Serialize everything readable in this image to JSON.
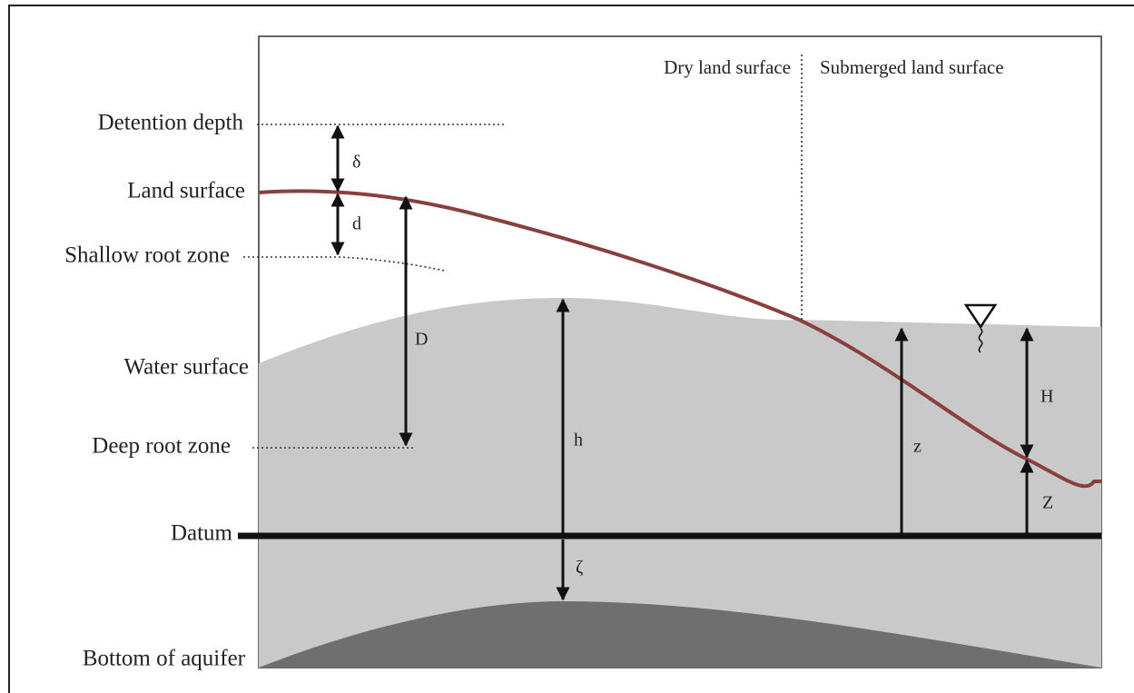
{
  "left_labels": [
    "Detention depth",
    "Land surface",
    "Shallow root zone",
    "Water surface",
    "Deep root zone",
    "Datum",
    "Bottom of aquifer"
  ],
  "top_labels": [
    "Dry land surface",
    "Submerged land surface"
  ],
  "symbols": [
    "δ",
    "d",
    "D",
    "h",
    "ζ",
    "z",
    "H",
    "Z"
  ]
}
